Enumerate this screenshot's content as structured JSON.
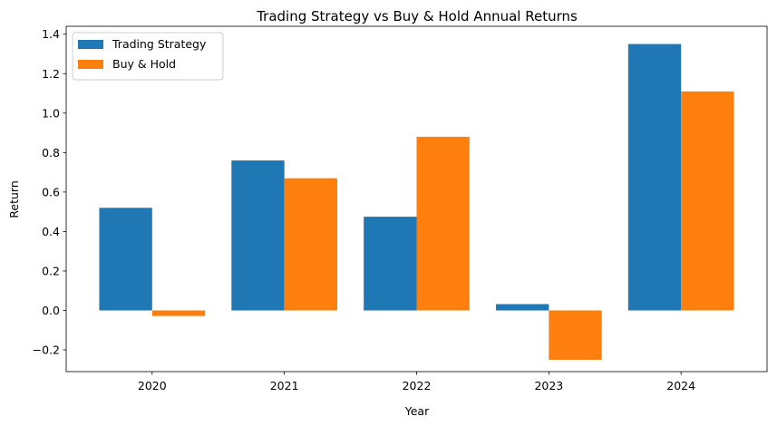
{
  "chart_data": {
    "type": "bar",
    "title": "Trading Strategy vs Buy & Hold Annual Returns",
    "xlabel": "Year",
    "ylabel": "Return",
    "categories": [
      "2020",
      "2021",
      "2022",
      "2023",
      "2024"
    ],
    "series": [
      {
        "name": "Trading Strategy",
        "color": "#1f77b4",
        "values": [
          0.52,
          0.76,
          0.475,
          0.032,
          1.35
        ]
      },
      {
        "name": "Buy & Hold",
        "color": "#ff7f0e",
        "values": [
          -0.028,
          0.67,
          0.88,
          -0.25,
          1.11
        ]
      }
    ],
    "ylim": [
      -0.31,
      1.44
    ],
    "yticks": [
      -0.2,
      0.0,
      0.2,
      0.4,
      0.6,
      0.8,
      1.0,
      1.2,
      1.4
    ],
    "ytick_labels": [
      "−0.2",
      "0.0",
      "0.2",
      "0.4",
      "0.6",
      "0.8",
      "1.0",
      "1.2",
      "1.4"
    ],
    "grid": false,
    "legend_position": "top-left"
  }
}
